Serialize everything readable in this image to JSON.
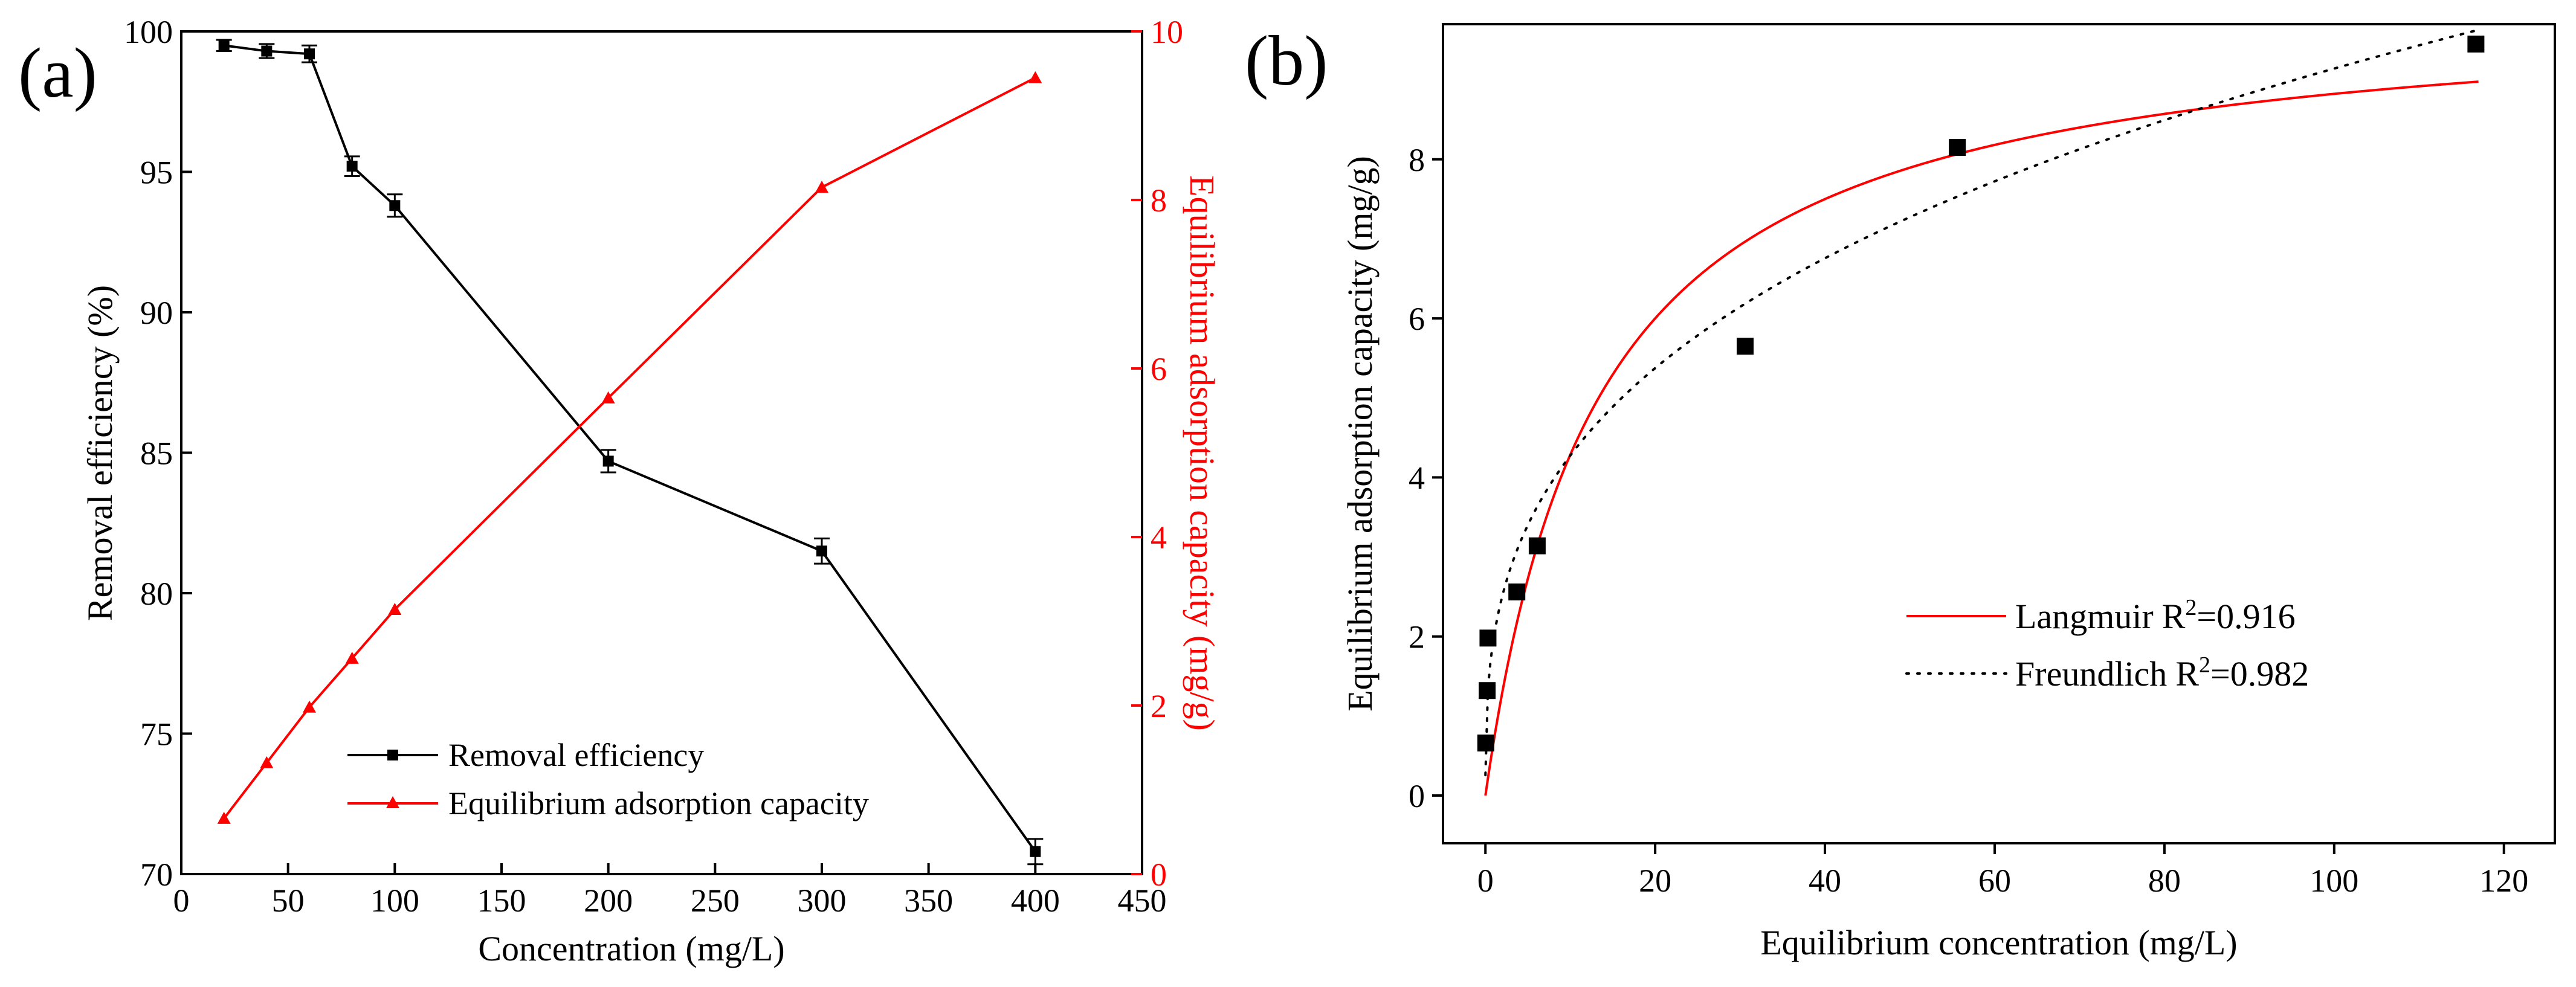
{
  "panel_labels": {
    "a": "(a)",
    "b": "(b)"
  },
  "colors": {
    "black": "#000000",
    "red": "#ff0000"
  },
  "chart_data": [
    {
      "panel": "(a)",
      "type": "line",
      "xlabel": "Concentration (mg/L)",
      "xlim": [
        0,
        450
      ],
      "xticks": [
        0,
        50,
        100,
        150,
        200,
        250,
        300,
        350,
        400,
        450
      ],
      "y_left": {
        "label": "Removal efficiency (%)",
        "lim": [
          70,
          100
        ],
        "ticks": [
          70,
          75,
          80,
          85,
          90,
          95,
          100
        ]
      },
      "y_right": {
        "label": "Equilibrium adsorption capacity (mg/g)",
        "lim": [
          0,
          10
        ],
        "ticks": [
          0,
          2,
          4,
          6,
          8,
          10
        ]
      },
      "series": [
        {
          "name": "Removal efficiency",
          "axis": "left",
          "color": "#000000",
          "marker": "square",
          "x": [
            20,
            40,
            60,
            80,
            100,
            200,
            300,
            400
          ],
          "y": [
            99.5,
            99.3,
            99.2,
            95.2,
            93.8,
            84.7,
            81.5,
            70.8
          ],
          "error": [
            0.2,
            0.25,
            0.3,
            0.35,
            0.4,
            0.4,
            0.45,
            0.45
          ]
        },
        {
          "name": "Equilibrium adsorption capacity",
          "axis": "right",
          "color": "#ff0000",
          "marker": "triangle",
          "x": [
            20,
            40,
            60,
            80,
            100,
            200,
            300,
            400
          ],
          "y": [
            0.66,
            1.32,
            1.98,
            2.56,
            3.14,
            5.65,
            8.15,
            9.45
          ]
        }
      ],
      "legend": [
        "Removal efficiency",
        "Equilibrium adsorption capacity"
      ]
    },
    {
      "panel": "(b)",
      "type": "scatter",
      "xlabel": "Equilibrium concentration (mg/L)",
      "ylabel": "Equilibrium adsorption capacity (mg/g)",
      "xlim": [
        -5,
        126
      ],
      "ylim": [
        -0.6,
        9.7
      ],
      "xticks": [
        0,
        20,
        40,
        60,
        80,
        100,
        120
      ],
      "yticks": [
        0,
        2,
        4,
        6,
        8
      ],
      "points": {
        "x": [
          0.04,
          0.2,
          0.3,
          3.7,
          6.1,
          30.6,
          55.6,
          116.7
        ],
        "y": [
          0.66,
          1.32,
          1.98,
          2.56,
          3.14,
          5.65,
          8.15,
          9.45
        ]
      },
      "fits": [
        {
          "name": "Langmuir",
          "r2_text": "=0.916",
          "color": "#ff0000",
          "dash": "solid",
          "qmax": 10.0,
          "KL": 0.075,
          "x_range": [
            0,
            117
          ]
        },
        {
          "name": "Freundlich",
          "r2_text": "=0.982",
          "color": "#000000",
          "dash": "dotted",
          "KF": 2.0,
          "n_inv": 0.33,
          "x_range": [
            0,
            117
          ]
        }
      ],
      "legend_r_label": "R",
      "legend_r_sup": "2"
    }
  ]
}
